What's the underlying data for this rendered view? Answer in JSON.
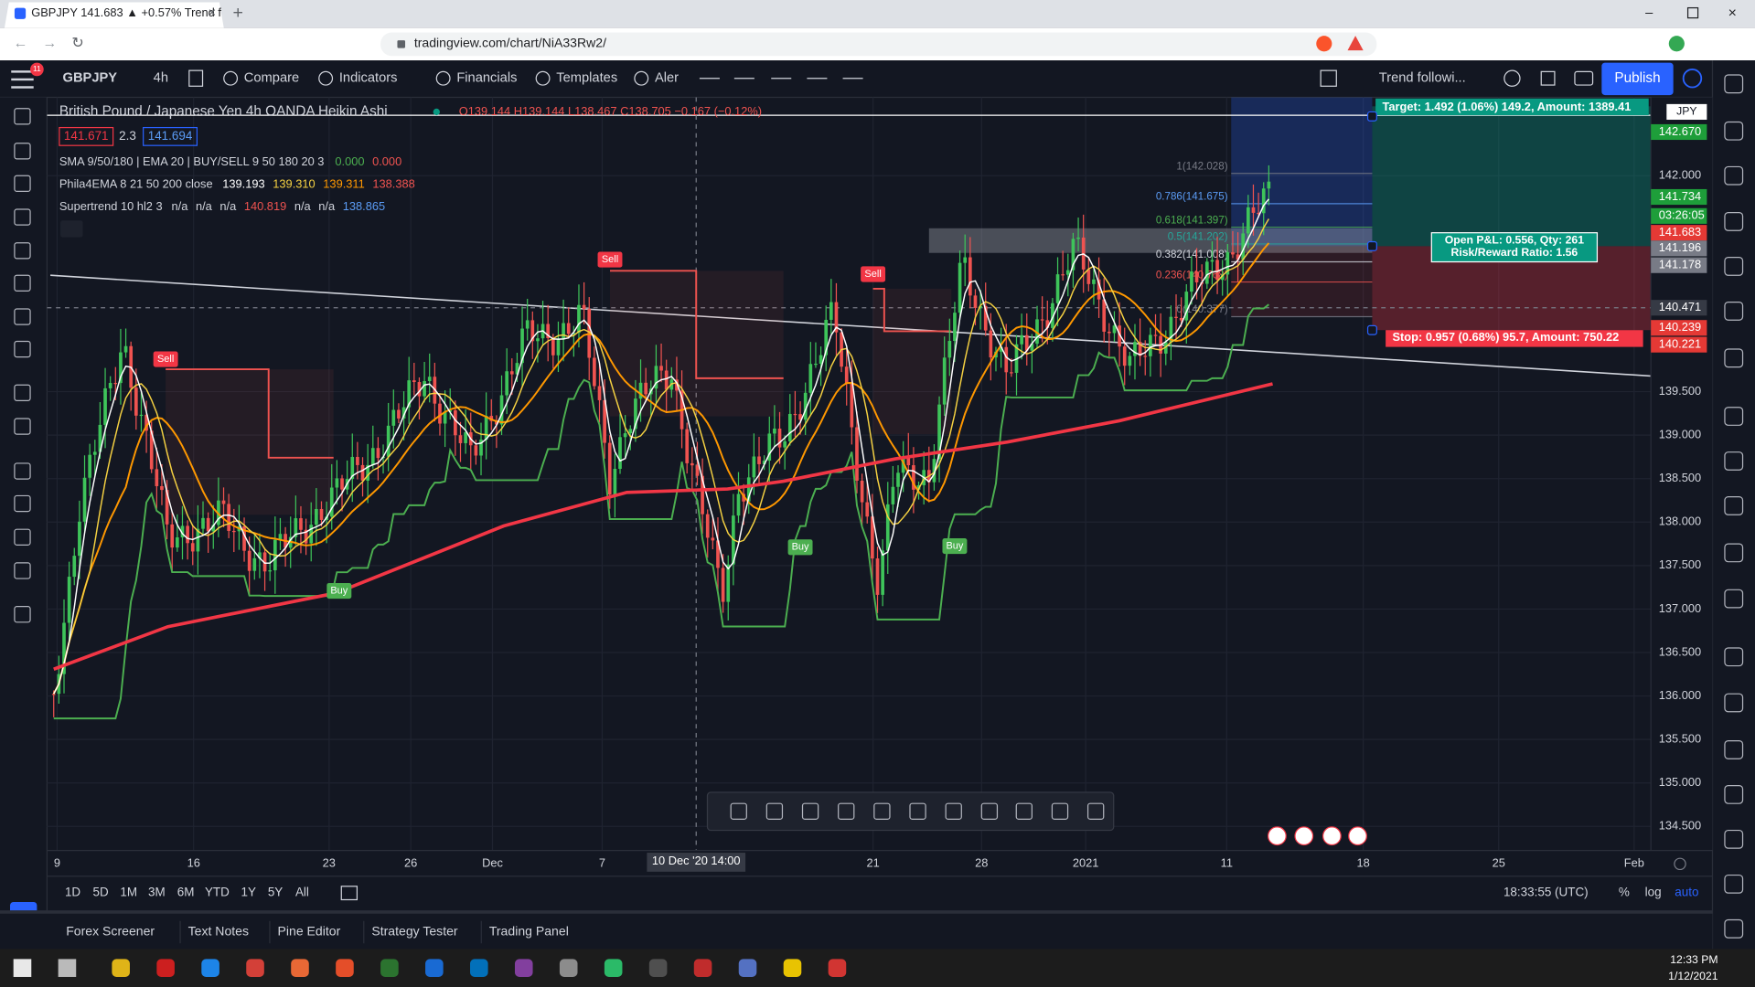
{
  "browser": {
    "tab_title": "GBPJPY 141.683 ▲ +0.57% Trend f",
    "url": "tradingview.com/chart/NiA33Rw2/"
  },
  "toolbar": {
    "badge": "11",
    "symbol": "GBPJPY",
    "interval": "4h",
    "items": [
      "Compare",
      "Indicators",
      "Financials",
      "Templates",
      "Aler"
    ],
    "layout": "Trend followi...",
    "publish": "Publish"
  },
  "legend": {
    "title": "British Pound / Japanese Yen  4h  OANDA  Heikin Ashi",
    "ohlc": "O139.144  H139.144  L138.467  C138.705  −0.167 (−0.12%)",
    "bid": "141.671",
    "spread": "2.3",
    "ask": "141.694",
    "indicators": [
      {
        "name": "SMA 9/50/180 | EMA 20 | BUY/SELL 9 50 180 20 3",
        "values": [
          "0.000",
          "0.000"
        ],
        "colors": [
          "#4caf50",
          "#ef5350"
        ]
      },
      {
        "name": "Phila4EMA 8 21 50 200 close",
        "values": [
          "139.193",
          "139.310",
          "139.311",
          "138.388"
        ],
        "colors": [
          "#ffffff",
          "#f5d142",
          "#ff9800",
          "#ef5350"
        ]
      },
      {
        "name": "Supertrend 10 hl2 3",
        "values": [
          "n/a",
          "n/a",
          "n/a",
          "140.819",
          "n/a",
          "n/a",
          "138.865"
        ],
        "colors": [
          "#d1d4dc",
          "#d1d4dc",
          "#d1d4dc",
          "#ef5350",
          "#d1d4dc",
          "#d1d4dc",
          "#5b9cf6"
        ]
      }
    ]
  },
  "price_axis": {
    "currency": "JPY",
    "ticks": [
      "142.000",
      "139.500",
      "139.000",
      "138.500",
      "138.000",
      "137.500",
      "137.000",
      "136.500",
      "136.000",
      "135.500",
      "135.000",
      "134.500"
    ],
    "markers": [
      {
        "label": "142.670",
        "color": "#1e9e3a"
      },
      {
        "label": "141.734",
        "color": "#1e9e3a"
      },
      {
        "label": "03:26:05",
        "color": "#1e9e3a"
      },
      {
        "label": "141.683",
        "color": "#e53935"
      },
      {
        "label": "141.196",
        "color": "#787b86"
      },
      {
        "label": "141.178",
        "color": "#787b86"
      },
      {
        "label": "140.471",
        "color": "#363a45"
      },
      {
        "label": "140.239",
        "color": "#e53935"
      },
      {
        "label": "140.221",
        "color": "#e53935"
      }
    ]
  },
  "time_axis": {
    "labels": [
      "9",
      "16",
      "23",
      "26",
      "Dec",
      "7",
      "21",
      "28",
      "2021",
      "11",
      "18",
      "25",
      "Feb"
    ],
    "crosshair": "10 Dec '20   14:00"
  },
  "position": {
    "target": "Target: 1.492 (1.06%) 149.2, Amount: 1389.41",
    "stop": "Stop: 0.957 (0.68%) 95.7, Amount: 750.22",
    "pnl": "Open P&L: 0.556, Qty: 261",
    "ratio": "Risk/Reward Ratio: 1.56"
  },
  "fib": [
    "1(142.028)",
    "0.786(141.675)",
    "0.618(141.397)",
    "0.5(141.202)",
    "0.382(141.008)",
    "0.236(140.768)",
    "0(140.377)"
  ],
  "signals": [
    "Sell",
    "Sell",
    "Sell",
    "Buy",
    "Buy",
    "Buy"
  ],
  "range": {
    "buttons": [
      "1D",
      "5D",
      "1M",
      "3M",
      "6M",
      "YTD",
      "1Y",
      "5Y",
      "All"
    ],
    "clock": "18:33:55 (UTC)",
    "options": [
      "%",
      "log",
      "auto"
    ]
  },
  "bottom_tabs": [
    "Forex Screener",
    "Text Notes",
    "Pine Editor",
    "Strategy Tester",
    "Trading Panel"
  ],
  "taskbar": {
    "time": "12:33 PM",
    "date": "1/12/2021"
  }
}
